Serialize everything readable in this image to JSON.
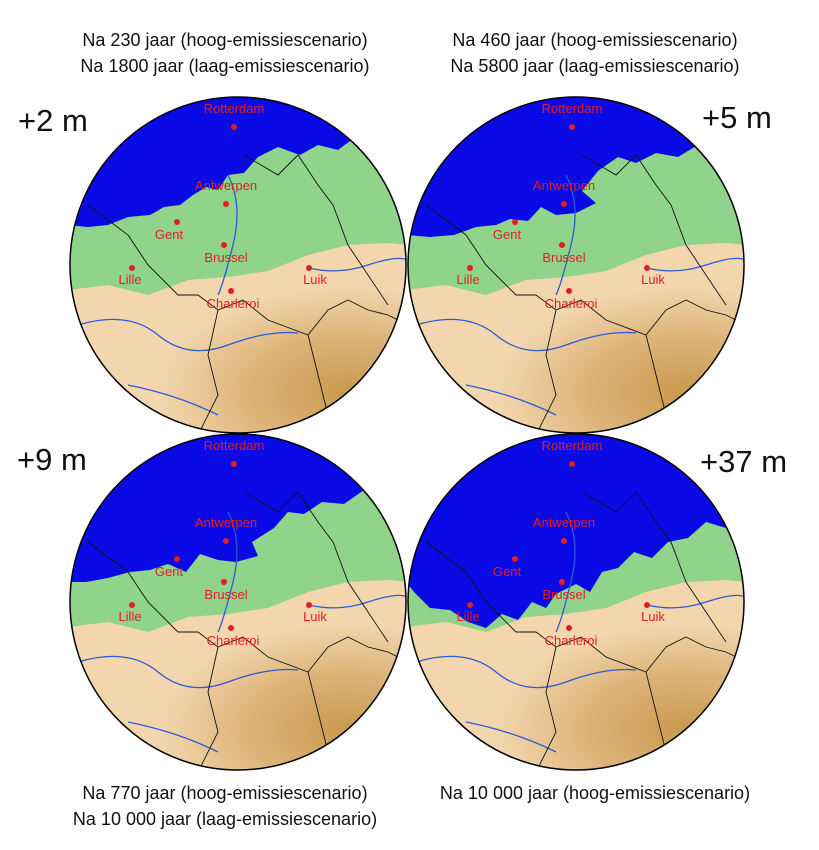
{
  "panels": [
    {
      "rise": "+2 m",
      "caption": [
        "Na 230 jaar  (hoog-emissiescenario)",
        "Na 1800 jaar (laag-emissiescenario)"
      ],
      "flood_level_m": 2
    },
    {
      "rise": "+5 m",
      "caption": [
        "Na 460 jaar (hoog-emissiescenario)",
        "Na 5800 jaar (laag-emissiescenario)"
      ],
      "flood_level_m": 5
    },
    {
      "rise": "+9 m",
      "caption": [
        "Na 770 jaar (hoog-emissiescenario)",
        "Na 10 000 jaar (laag-emissiescenario)"
      ],
      "flood_level_m": 9
    },
    {
      "rise": "+37 m",
      "caption": [
        "Na 10 000 jaar (hoog-emissiescenario)"
      ],
      "flood_level_m": 37
    }
  ],
  "cities": [
    "Rotterdam",
    "Antwerpen",
    "Gent",
    "Brussel",
    "Lille",
    "Luik",
    "Charleroi"
  ],
  "colors": {
    "sea": "#0a0ae6",
    "lowland": "#8fd48a",
    "upland_light": "#f3d6ae",
    "upland_dark": "#c99a4e",
    "river": "#2a5bd7",
    "border": "#111111",
    "city": "#e02020"
  }
}
